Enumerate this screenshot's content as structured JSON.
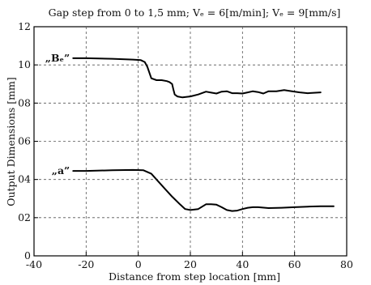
{
  "chart_data": {
    "type": "line",
    "title": "Gap step from 0 to 1,5 mm; Vₑ = 6[m/min]; Vₑ = 9[mm/s]",
    "xlabel": "Distance from step location [mm]",
    "ylabel": "Output Dimensions [mm]",
    "xlim": [
      -40,
      80
    ],
    "ylim": [
      0,
      12
    ],
    "xticks": [
      "-40",
      "-20",
      "0",
      "20",
      "40",
      "60",
      "80"
    ],
    "yticks": [
      "0",
      "02",
      "04",
      "06",
      "08",
      "10",
      "12"
    ],
    "grid": true,
    "series": [
      {
        "name": "„Bₑ”",
        "x": [
          -25,
          -20,
          -10,
          -2,
          1,
          2.5,
          3.5,
          5,
          7,
          9,
          11,
          12,
          13,
          13.5,
          14,
          15,
          17,
          20,
          23,
          26,
          28,
          30,
          32,
          34,
          36,
          38,
          40,
          42,
          44,
          46,
          48,
          50,
          53,
          56,
          59,
          62,
          65,
          70
        ],
        "y": [
          10.35,
          10.35,
          10.32,
          10.28,
          10.25,
          10.15,
          9.9,
          9.3,
          9.2,
          9.2,
          9.15,
          9.1,
          9.0,
          8.7,
          8.45,
          8.35,
          8.3,
          8.35,
          8.45,
          8.6,
          8.55,
          8.5,
          8.6,
          8.62,
          8.52,
          8.52,
          8.5,
          8.56,
          8.62,
          8.58,
          8.5,
          8.62,
          8.62,
          8.68,
          8.62,
          8.56,
          8.52,
          8.56
        ]
      },
      {
        "name": "„a”",
        "x": [
          -25,
          -20,
          -10,
          -2,
          2,
          5,
          7,
          10,
          13,
          16,
          18,
          20,
          23,
          26,
          28,
          30,
          32,
          34,
          36,
          38,
          40,
          42,
          44,
          46,
          50,
          55,
          60,
          65,
          70,
          75
        ],
        "y": [
          4.45,
          4.45,
          4.48,
          4.5,
          4.48,
          4.3,
          4.0,
          3.55,
          3.1,
          2.7,
          2.45,
          2.4,
          2.45,
          2.7,
          2.7,
          2.68,
          2.55,
          2.4,
          2.35,
          2.37,
          2.45,
          2.52,
          2.55,
          2.55,
          2.5,
          2.52,
          2.55,
          2.58,
          2.6,
          2.6
        ]
      }
    ]
  }
}
